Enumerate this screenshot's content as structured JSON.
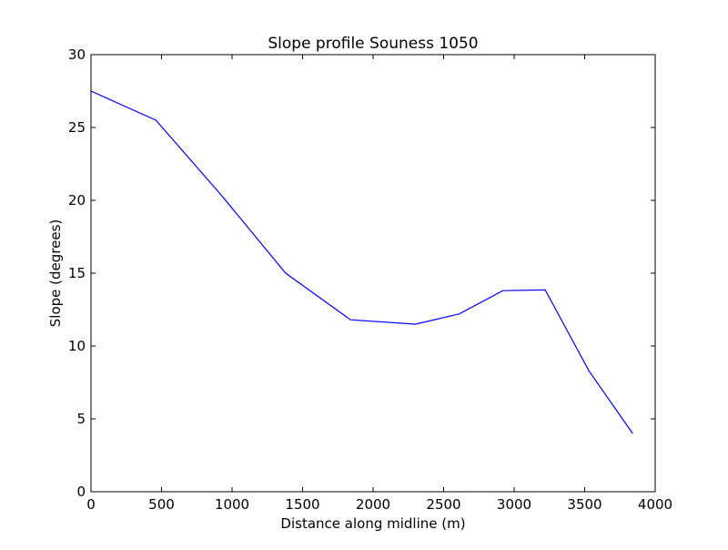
{
  "chart_data": {
    "type": "line",
    "title": "Slope profile Souness 1050",
    "xlabel": "Distance along midline (m)",
    "ylabel": "Slope (degrees)",
    "xlim": [
      0,
      4000
    ],
    "ylim": [
      0,
      30
    ],
    "xticks": [
      0,
      500,
      1000,
      1500,
      2000,
      2500,
      3000,
      3500,
      4000
    ],
    "yticks": [
      0,
      5,
      10,
      15,
      20,
      25,
      30
    ],
    "grid": false,
    "legend": "none",
    "series": [
      {
        "color": "#0000ff",
        "x": [
          0,
          460,
          920,
          1380,
          1840,
          2300,
          2610,
          2920,
          3220,
          3530,
          3840
        ],
        "y": [
          27.5,
          25.5,
          20.4,
          15.0,
          11.8,
          11.5,
          12.2,
          13.8,
          13.85,
          8.3,
          4.0
        ]
      }
    ]
  }
}
